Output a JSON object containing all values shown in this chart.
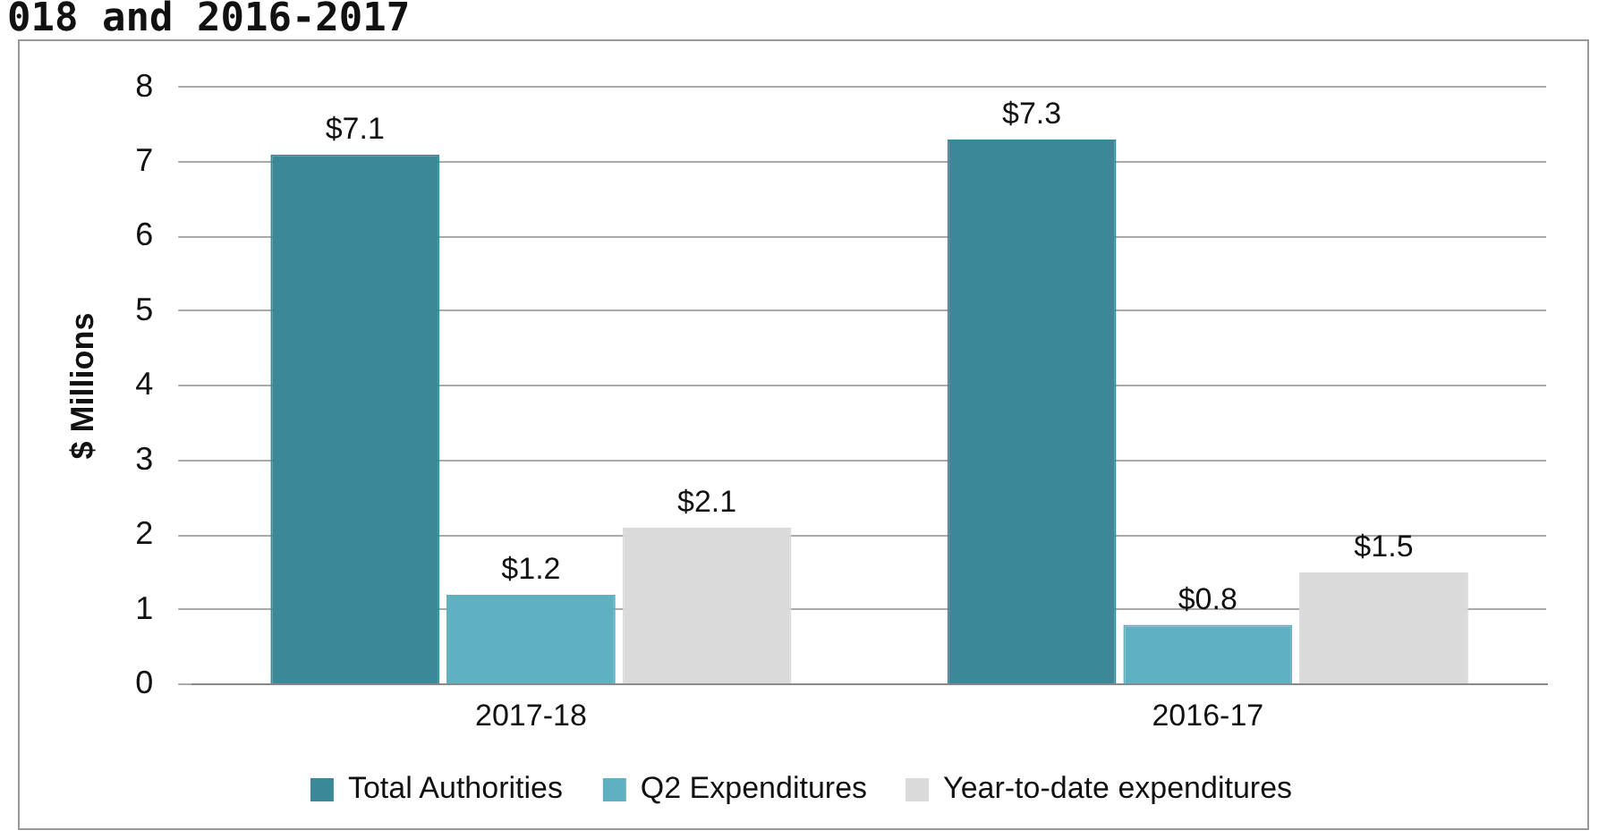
{
  "chart_data": {
    "type": "bar",
    "title": "018 and 2016-2017",
    "ylabel": "$ Millions",
    "categories": [
      "2017-18",
      "2016-17"
    ],
    "series": [
      {
        "name": "Total Authorities",
        "color": "#3b8898",
        "values": [
          7.1,
          7.3
        ],
        "value_labels": [
          "$7.1",
          "$7.3"
        ]
      },
      {
        "name": "Q2 Expenditures",
        "color": "#5fb0c0",
        "values": [
          1.2,
          0.8
        ],
        "value_labels": [
          "$1.2",
          "$0.8"
        ]
      },
      {
        "name": "Year-to-date expenditures",
        "color": "#dadada",
        "values": [
          2.1,
          1.5
        ],
        "value_labels": [
          "$2.1",
          "$1.5"
        ]
      }
    ],
    "ylim": [
      0,
      8
    ],
    "yticks": [
      0,
      1,
      2,
      3,
      4,
      5,
      6,
      7,
      8
    ],
    "grid": "y",
    "legend": "bottom"
  }
}
